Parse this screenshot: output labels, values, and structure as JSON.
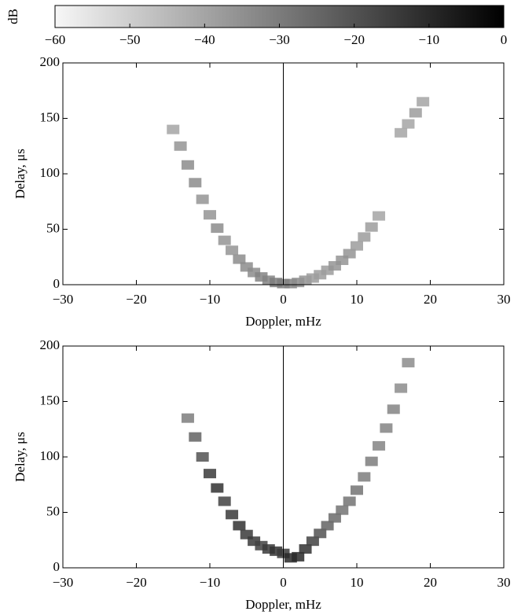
{
  "chart_data": [
    {
      "type": "colorbar",
      "label": "dB",
      "xlim": [
        -60,
        0
      ],
      "xticks": [
        {
          "value": -60,
          "label": "−60"
        },
        {
          "value": -50,
          "label": "−50"
        },
        {
          "value": -40,
          "label": "−40"
        },
        {
          "value": -30,
          "label": "−30"
        },
        {
          "value": -20,
          "label": "−20"
        },
        {
          "value": -10,
          "label": "−10"
        },
        0
      ],
      "colors": [
        "#f7f7f7",
        "#000000"
      ]
    },
    {
      "type": "heatmap",
      "x_label": "Doppler, mHz",
      "y_label": "Delay, μs",
      "xlim": [
        -30,
        30
      ],
      "ylim": [
        0,
        200
      ],
      "xticks": [
        {
          "value": -30,
          "label": "−30"
        },
        {
          "value": -20,
          "label": "−20"
        },
        {
          "value": -10,
          "label": "−10"
        },
        0,
        10,
        20,
        30
      ],
      "yticks": [
        0,
        50,
        100,
        150,
        200
      ],
      "vline": 0,
      "x": [
        -15,
        -14,
        -13,
        -12,
        -11,
        -10,
        -9,
        -8,
        -7,
        -6,
        -5,
        -4,
        -3,
        -2,
        -1,
        0,
        1,
        2,
        3,
        4,
        5,
        6,
        7,
        8,
        9,
        10,
        11,
        12,
        13,
        16,
        17,
        18,
        19
      ],
      "y": [
        140,
        125,
        108,
        92,
        77,
        63,
        51,
        40,
        31,
        23,
        16,
        11,
        7,
        4,
        2,
        1,
        1,
        2,
        4,
        6,
        9,
        13,
        17,
        22,
        28,
        35,
        43,
        52,
        62,
        137,
        145,
        155,
        165
      ],
      "values": [
        -40,
        -36,
        -34,
        -34,
        -36,
        -36,
        -34,
        -36,
        -36,
        -34,
        -34,
        -34,
        -32,
        -32,
        -30,
        -30,
        -32,
        -34,
        -36,
        -38,
        -38,
        -38,
        -36,
        -36,
        -36,
        -38,
        -38,
        -38,
        -40,
        -40,
        -40,
        -38,
        -40
      ]
    },
    {
      "type": "heatmap",
      "x_label": "Doppler, mHz",
      "y_label": "Delay, μs",
      "xlim": [
        -30,
        30
      ],
      "ylim": [
        0,
        200
      ],
      "xticks": [
        {
          "value": -30,
          "label": "−30"
        },
        {
          "value": -20,
          "label": "−20"
        },
        {
          "value": -10,
          "label": "−10"
        },
        0,
        10,
        20,
        30
      ],
      "yticks": [
        0,
        50,
        100,
        150,
        200
      ],
      "vline": 0,
      "x": [
        -13,
        -12,
        -11,
        -10,
        -9,
        -8,
        -7,
        -6,
        -5,
        -4,
        -3,
        -2,
        -1,
        0,
        1,
        2,
        3,
        4,
        5,
        6,
        7,
        8,
        9,
        10,
        11,
        12,
        13,
        14,
        15,
        16,
        17
      ],
      "y": [
        135,
        118,
        100,
        85,
        72,
        60,
        48,
        38,
        30,
        24,
        20,
        17,
        15,
        13,
        9,
        10,
        17,
        24,
        31,
        38,
        45,
        52,
        60,
        70,
        82,
        96,
        110,
        126,
        143,
        162,
        185
      ],
      "values": [
        -30,
        -24,
        -20,
        -14,
        -12,
        -16,
        -14,
        -12,
        -14,
        -14,
        -16,
        -14,
        -12,
        -14,
        -10,
        -10,
        -12,
        -16,
        -20,
        -24,
        -26,
        -28,
        -28,
        -28,
        -30,
        -30,
        -32,
        -32,
        -32,
        -34,
        -34
      ]
    }
  ]
}
